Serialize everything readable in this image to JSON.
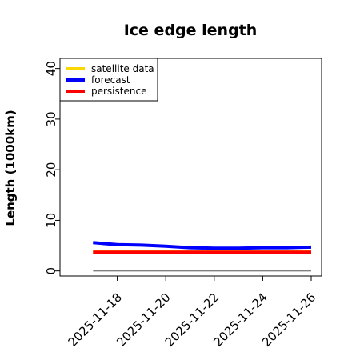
{
  "chart_data": {
    "type": "line",
    "title": "Ice edge length",
    "xlabel": "",
    "ylabel": "Length (1000km)",
    "ylim": [
      -1,
      42
    ],
    "xlim": [
      "2025-11-16",
      "2025-11-26"
    ],
    "yticks": [
      0,
      10,
      20,
      30,
      40
    ],
    "xticks": [
      "2025-11-18",
      "2025-11-20",
      "2025-11-22",
      "2025-11-24",
      "2025-11-26"
    ],
    "highlight_tick": "2025-11-18",
    "grid": false,
    "legend_position": "top-left",
    "series": [
      {
        "name": "satellite data",
        "color": "#ffd700",
        "x": [
          "2025-11-17",
          "2025-11-18",
          "2025-11-19",
          "2025-11-20",
          "2025-11-21",
          "2025-11-22",
          "2025-11-23",
          "2025-11-24",
          "2025-11-25",
          "2025-11-26"
        ],
        "y": [
          3.8,
          3.8,
          3.8,
          3.8,
          3.8,
          3.8,
          3.8,
          3.8,
          3.8,
          3.8
        ]
      },
      {
        "name": "forecast",
        "color": "#0000ff",
        "x": [
          "2025-11-17",
          "2025-11-18",
          "2025-11-19",
          "2025-11-20",
          "2025-11-21",
          "2025-11-22",
          "2025-11-23",
          "2025-11-24",
          "2025-11-25",
          "2025-11-26"
        ],
        "y": [
          5.6,
          5.2,
          5.1,
          4.9,
          4.6,
          4.5,
          4.5,
          4.6,
          4.6,
          4.7
        ]
      },
      {
        "name": "persistence",
        "color": "#ff0000",
        "x": [
          "2025-11-17",
          "2025-11-18",
          "2025-11-19",
          "2025-11-20",
          "2025-11-21",
          "2025-11-22",
          "2025-11-23",
          "2025-11-24",
          "2025-11-25",
          "2025-11-26"
        ],
        "y": [
          3.7,
          3.7,
          3.7,
          3.7,
          3.7,
          3.7,
          3.7,
          3.7,
          3.7,
          3.7
        ]
      }
    ],
    "reference_line": {
      "y": 0,
      "color": "#808080"
    },
    "colors": {
      "axis": "#000000",
      "highlight_tick_color": "#228b22",
      "text": "#000000"
    }
  }
}
